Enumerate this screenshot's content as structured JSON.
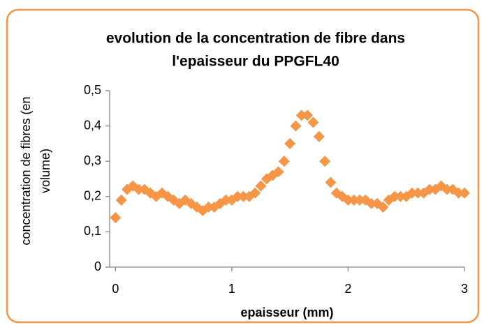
{
  "chart_data": {
    "type": "scatter",
    "title": [
      "evolution de la concentration de fibre dans",
      "l'epaisseur du PPGFL40"
    ],
    "x_label": "epaisseur  (mm)",
    "y_label": [
      "concentration de fibres (en",
      "volume)"
    ],
    "xlim": [
      -0.05,
      3
    ],
    "xticks": [
      0,
      1,
      2,
      3
    ],
    "ylim": [
      0,
      0.5
    ],
    "yticks": [
      0,
      {
        "value": 0.1,
        "label": "0,1"
      },
      {
        "value": 0.2,
        "label": "0,2"
      },
      {
        "value": 0.3,
        "label": "0,3"
      },
      {
        "value": 0.4,
        "label": "0,4"
      },
      {
        "value": 0.5,
        "label": "0,5"
      }
    ],
    "grid": false,
    "series": [
      {
        "name": "concentration",
        "color": "#f79646",
        "x": [
          0,
          0.05,
          0.1,
          0.15,
          0.2,
          0.25,
          0.3,
          0.35,
          0.4,
          0.45,
          0.5,
          0.55,
          0.6,
          0.65,
          0.7,
          0.75,
          0.8,
          0.85,
          0.9,
          0.95,
          1,
          1.05,
          1.1,
          1.15,
          1.2,
          1.25,
          1.3,
          1.35,
          1.4,
          1.45,
          1.5,
          1.55,
          1.6,
          1.65,
          1.7,
          1.75,
          1.8,
          1.85,
          1.9,
          1.95,
          2,
          2.05,
          2.1,
          2.15,
          2.2,
          2.25,
          2.3,
          2.35,
          2.4,
          2.45,
          2.5,
          2.55,
          2.6,
          2.65,
          2.7,
          2.75,
          2.8,
          2.85,
          2.9,
          2.95,
          3
        ],
        "values": [
          0.14,
          0.19,
          0.22,
          0.23,
          0.22,
          0.22,
          0.21,
          0.2,
          0.21,
          0.2,
          0.19,
          0.18,
          0.19,
          0.18,
          0.17,
          0.16,
          0.17,
          0.17,
          0.18,
          0.19,
          0.19,
          0.2,
          0.2,
          0.2,
          0.21,
          0.23,
          0.25,
          0.26,
          0.27,
          0.3,
          0.35,
          0.4,
          0.43,
          0.43,
          0.41,
          0.37,
          0.3,
          0.24,
          0.21,
          0.2,
          0.19,
          0.19,
          0.19,
          0.19,
          0.18,
          0.18,
          0.17,
          0.19,
          0.2,
          0.2,
          0.2,
          0.21,
          0.21,
          0.21,
          0.22,
          0.22,
          0.23,
          0.22,
          0.22,
          0.21,
          0.21
        ]
      }
    ]
  }
}
